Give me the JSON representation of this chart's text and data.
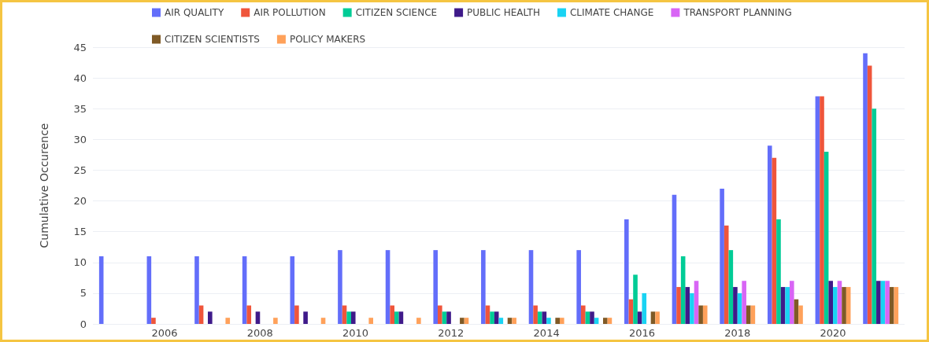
{
  "chart_data": {
    "type": "bar",
    "ylabel": "Cumulative Occurence",
    "categories": [
      null,
      "2006",
      null,
      "2008",
      null,
      "2010",
      null,
      "2012",
      null,
      "2014",
      null,
      "2016",
      null,
      "2018",
      null,
      "2020",
      null
    ],
    "series": [
      {
        "name": "AIR QUALITY",
        "color": "#636efa",
        "values": [
          11,
          11,
          11,
          11,
          11,
          12,
          12,
          12,
          12,
          12,
          12,
          17,
          21,
          22,
          29,
          37,
          44
        ]
      },
      {
        "name": "AIR POLLUTION",
        "color": "#ef553b",
        "values": [
          0,
          1,
          3,
          3,
          3,
          3,
          3,
          3,
          3,
          3,
          3,
          4,
          6,
          16,
          27,
          37,
          42
        ]
      },
      {
        "name": "CITIZEN SCIENCE",
        "color": "#00cc96",
        "values": [
          0,
          0,
          0,
          0,
          0,
          2,
          2,
          2,
          2,
          2,
          2,
          8,
          11,
          12,
          17,
          28,
          35
        ]
      },
      {
        "name": "PUBLIC HEALTH",
        "color": "#3f1a8a",
        "values": [
          0,
          0,
          2,
          2,
          2,
          2,
          2,
          2,
          2,
          2,
          2,
          2,
          6,
          6,
          6,
          7,
          7
        ]
      },
      {
        "name": "CLIMATE CHANGE",
        "color": "#19d3f3",
        "values": [
          0,
          0,
          0,
          0,
          0,
          0,
          0,
          0,
          1,
          1,
          1,
          5,
          5,
          5,
          6,
          6,
          7
        ]
      },
      {
        "name": "TRANSPORT PLANNING",
        "color": "#d865f5",
        "values": [
          0,
          0,
          0,
          0,
          0,
          0,
          0,
          0,
          0,
          0,
          0,
          0,
          7,
          7,
          7,
          7,
          7
        ]
      },
      {
        "name": "CITIZEN SCIENTISTS",
        "color": "#7f5a26",
        "values": [
          0,
          0,
          0,
          0,
          0,
          0,
          0,
          1,
          1,
          1,
          1,
          2,
          3,
          3,
          4,
          6,
          6
        ]
      },
      {
        "name": "POLICY MAKERS",
        "color": "#ffa15a",
        "values": [
          0,
          0,
          1,
          1,
          1,
          1,
          1,
          1,
          1,
          1,
          1,
          2,
          3,
          3,
          3,
          6,
          6
        ]
      }
    ],
    "ylim": [
      0,
      45
    ],
    "yticks": [
      0,
      5,
      10,
      15,
      20,
      25,
      30,
      35,
      40,
      45
    ],
    "grid": "y",
    "legend": "top"
  }
}
